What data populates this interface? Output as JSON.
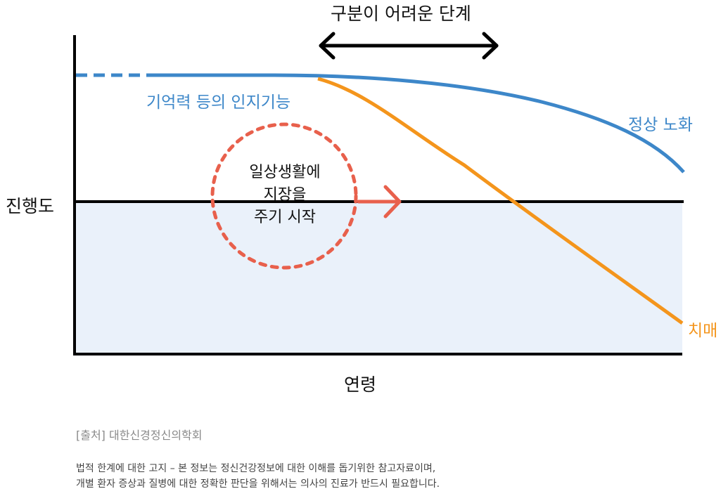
{
  "title": "구분이 어려운 단계",
  "y_axis_label": "진행도",
  "x_axis_label": "연령",
  "curves": {
    "cognitive_label": "기억력 등의 인지기능",
    "normal_label": "정상 노화",
    "dementia_label": "치매"
  },
  "circle_text": [
    "일상생활에",
    "지장을",
    "주기 시작"
  ],
  "source": "[출처] 대한신경정신의학회",
  "disclaimer": [
    "법적 한계에 대한 고지 – 본 정보는 정신건강정보에 대한 이해를 돕기위한 참고자료이며,",
    "개별 환자 증상과 질병에 대한 정확한 판단을 위해서는 의사의 진료가 반드시  필요합니다."
  ],
  "colors": {
    "normal": "#3d87c9",
    "dementia": "#f4951c",
    "circle": "#e8604c",
    "shade": "#eaf1fa",
    "axis": "#000000"
  },
  "icons": {
    "title_arrow": "double-headed-arrow",
    "circle_arrow": "right-arrow"
  }
}
